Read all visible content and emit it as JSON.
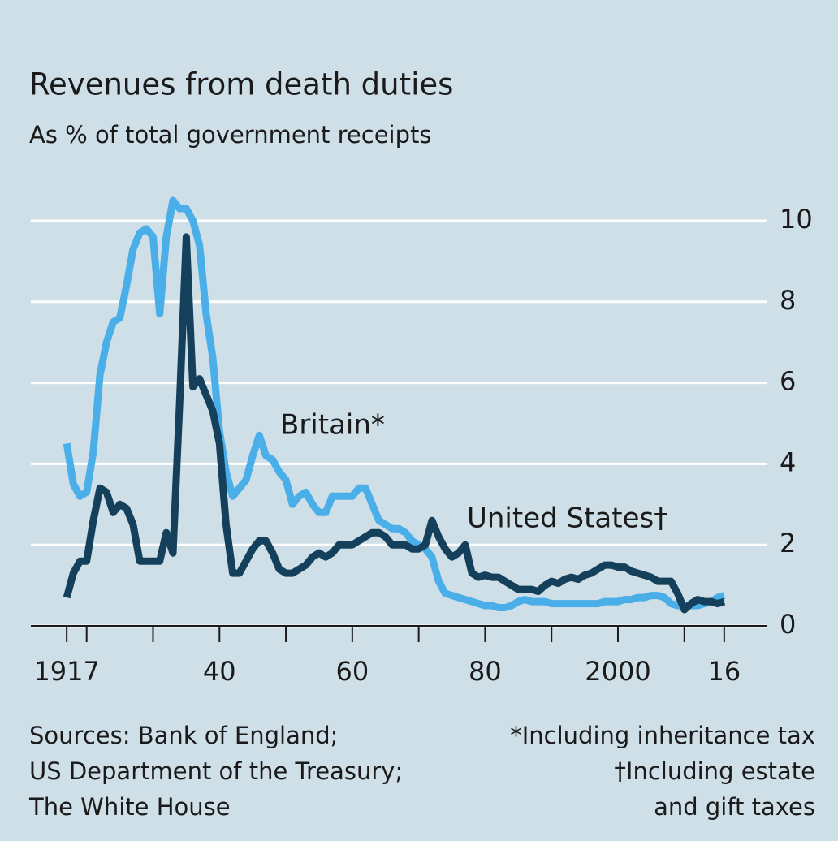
{
  "chart_data": {
    "type": "line",
    "title": "Revenues from death duties",
    "subtitle": "As % of total government receipts",
    "x": [
      1917,
      1918,
      1919,
      1920,
      1921,
      1922,
      1923,
      1924,
      1925,
      1926,
      1927,
      1928,
      1929,
      1930,
      1931,
      1932,
      1933,
      1934,
      1935,
      1936,
      1937,
      1938,
      1939,
      1940,
      1941,
      1942,
      1943,
      1944,
      1945,
      1946,
      1947,
      1948,
      1949,
      1950,
      1951,
      1952,
      1953,
      1954,
      1955,
      1956,
      1957,
      1958,
      1959,
      1960,
      1961,
      1962,
      1963,
      1964,
      1965,
      1966,
      1967,
      1968,
      1969,
      1970,
      1971,
      1972,
      1973,
      1974,
      1975,
      1976,
      1977,
      1978,
      1979,
      1980,
      1981,
      1982,
      1983,
      1984,
      1985,
      1986,
      1987,
      1988,
      1989,
      1990,
      1991,
      1992,
      1993,
      1994,
      1995,
      1996,
      1997,
      1998,
      1999,
      2000,
      2001,
      2002,
      2003,
      2004,
      2005,
      2006,
      2007,
      2008,
      2009,
      2010,
      2011,
      2012,
      2013,
      2014,
      2015,
      2016
    ],
    "series": [
      {
        "name": "Britain*",
        "color": "#4aaee8",
        "values": [
          4.5,
          3.5,
          3.2,
          3.3,
          4.3,
          6.2,
          7.0,
          7.5,
          7.6,
          8.4,
          9.3,
          9.7,
          9.8,
          9.6,
          7.7,
          9.6,
          10.5,
          10.3,
          10.3,
          10.0,
          9.4,
          7.7,
          6.6,
          4.8,
          3.8,
          3.2,
          3.4,
          3.6,
          4.2,
          4.7,
          4.2,
          4.1,
          3.8,
          3.6,
          3.0,
          3.2,
          3.3,
          3.0,
          2.8,
          2.8,
          3.2,
          3.2,
          3.2,
          3.2,
          3.4,
          3.4,
          3.0,
          2.6,
          2.5,
          2.4,
          2.4,
          2.3,
          2.1,
          2.0,
          1.9,
          1.7,
          1.1,
          0.8,
          0.75,
          0.7,
          0.65,
          0.6,
          0.55,
          0.5,
          0.5,
          0.45,
          0.45,
          0.5,
          0.6,
          0.65,
          0.6,
          0.6,
          0.6,
          0.55,
          0.55,
          0.55,
          0.55,
          0.55,
          0.55,
          0.55,
          0.55,
          0.6,
          0.6,
          0.6,
          0.65,
          0.65,
          0.7,
          0.7,
          0.75,
          0.75,
          0.7,
          0.55,
          0.5,
          0.5,
          0.5,
          0.5,
          0.55,
          0.6,
          0.7,
          0.75
        ]
      },
      {
        "name": "United States†",
        "color": "#15405c",
        "values": [
          0.7,
          1.3,
          1.6,
          1.6,
          2.6,
          3.4,
          3.3,
          2.8,
          3.0,
          2.9,
          2.5,
          1.6,
          1.6,
          1.6,
          1.6,
          2.3,
          1.8,
          5.5,
          9.6,
          5.9,
          6.1,
          5.7,
          5.3,
          4.5,
          2.5,
          1.3,
          1.3,
          1.6,
          1.9,
          2.1,
          2.1,
          1.8,
          1.4,
          1.3,
          1.3,
          1.4,
          1.5,
          1.7,
          1.8,
          1.7,
          1.8,
          2.0,
          2.0,
          2.0,
          2.1,
          2.2,
          2.3,
          2.3,
          2.2,
          2.0,
          2.0,
          2.0,
          1.9,
          1.9,
          2.0,
          2.6,
          2.2,
          1.9,
          1.7,
          1.8,
          2.0,
          1.3,
          1.2,
          1.25,
          1.2,
          1.2,
          1.1,
          1.0,
          0.9,
          0.9,
          0.9,
          0.85,
          1.0,
          1.1,
          1.05,
          1.15,
          1.2,
          1.15,
          1.25,
          1.3,
          1.4,
          1.5,
          1.5,
          1.45,
          1.45,
          1.35,
          1.3,
          1.25,
          1.2,
          1.1,
          1.1,
          1.1,
          0.8,
          0.4,
          0.55,
          0.65,
          0.6,
          0.6,
          0.55,
          0.6
        ]
      }
    ],
    "xlim": [
      1911.6,
      2022.5
    ],
    "xticks": [
      {
        "value": 1917,
        "label": "1917"
      },
      {
        "value": 1940,
        "label": "40"
      },
      {
        "value": 1960,
        "label": "60"
      },
      {
        "value": 1980,
        "label": "80"
      },
      {
        "value": 2000,
        "label": "2000"
      },
      {
        "value": 2016,
        "label": "16"
      }
    ],
    "xminorticks": [
      1920,
      1930,
      1950,
      1970,
      1990,
      2010
    ],
    "ylim": [
      0,
      10.5
    ],
    "yticks": [
      0,
      2,
      4,
      6,
      8,
      10
    ],
    "grid": true,
    "source_lines": [
      "Sources: Bank of England;",
      "US Department of the Treasury;",
      "The White House"
    ],
    "note_lines": [
      "*Including inheritance tax",
      "†Including estate",
      "and gift taxes"
    ]
  }
}
